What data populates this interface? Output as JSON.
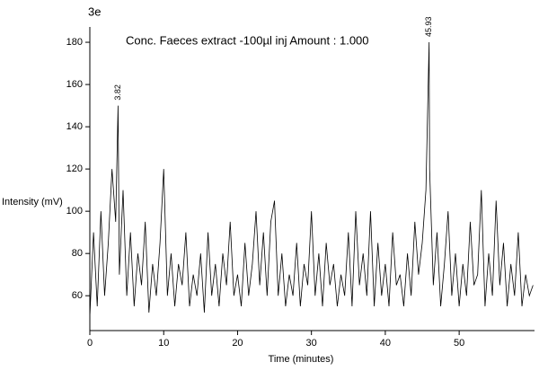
{
  "chart_data": {
    "type": "line",
    "figure_label": "3e",
    "title": "Conc. Faeces extract -100µl inj  Amount : 1.000",
    "xlabel": "Time (minutes)",
    "ylabel": "Intensity (mV)",
    "x": [
      0,
      0.5,
      1,
      1.5,
      2,
      2.5,
      3,
      3.5,
      3.82,
      4,
      4.5,
      5,
      5.5,
      6,
      6.5,
      7,
      7.5,
      8,
      8.5,
      9,
      9.5,
      10,
      10.5,
      11,
      11.5,
      12,
      12.5,
      13,
      13.5,
      14,
      14.5,
      15,
      15.5,
      16,
      16.5,
      17,
      17.5,
      18,
      18.5,
      19,
      19.5,
      20,
      20.5,
      21,
      21.5,
      22,
      22.5,
      23,
      23.5,
      24,
      24.5,
      25,
      25.5,
      26,
      26.5,
      27,
      27.5,
      28,
      28.5,
      29,
      29.5,
      30,
      30.5,
      31,
      31.5,
      32,
      32.5,
      33,
      33.5,
      34,
      34.5,
      35,
      35.5,
      36,
      36.5,
      37,
      37.5,
      38,
      38.5,
      39,
      39.5,
      40,
      40.5,
      41,
      41.5,
      42,
      42.5,
      43,
      43.5,
      44,
      44.5,
      45,
      45.5,
      45.93,
      46,
      46.5,
      47,
      47.5,
      48,
      48.5,
      49,
      49.5,
      50,
      50.5,
      51,
      51.5,
      52,
      52.5,
      53,
      53.5,
      54,
      54.5,
      55,
      55.5,
      56,
      56.5,
      57,
      57.5,
      58,
      58.5,
      59,
      59.5,
      60
    ],
    "series": [
      {
        "color": "#000000",
        "values": [
          50,
          90,
          55,
          100,
          60,
          85,
          120,
          95,
          150,
          70,
          110,
          60,
          90,
          55,
          80,
          65,
          95,
          52,
          75,
          60,
          85,
          120,
          60,
          80,
          55,
          75,
          65,
          90,
          55,
          70,
          60,
          80,
          52,
          90,
          60,
          75,
          55,
          80,
          65,
          95,
          60,
          70,
          55,
          85,
          60,
          75,
          100,
          65,
          90,
          60,
          95,
          105,
          60,
          80,
          55,
          70,
          60,
          85,
          55,
          75,
          65,
          100,
          60,
          80,
          55,
          85,
          65,
          75,
          55,
          70,
          60,
          90,
          55,
          100,
          65,
          80,
          60,
          100,
          55,
          85,
          60,
          75,
          55,
          90,
          65,
          70,
          55,
          80,
          60,
          95,
          70,
          85,
          110,
          180,
          120,
          65,
          90,
          55,
          75,
          100,
          60,
          80,
          55,
          75,
          60,
          95,
          65,
          70,
          110,
          55,
          80,
          60,
          105,
          65,
          85,
          55,
          75,
          60,
          90,
          55,
          70,
          60,
          65
        ]
      }
    ],
    "peak_labels": [
      3.82,
      45.93
    ],
    "xlim": [
      0,
      60.2
    ],
    "ylim": [
      43.5,
      183
    ],
    "xticks": [
      0,
      10,
      20,
      30,
      40,
      50
    ],
    "yticks": [
      60,
      80,
      100,
      120,
      140,
      160,
      180
    ]
  }
}
